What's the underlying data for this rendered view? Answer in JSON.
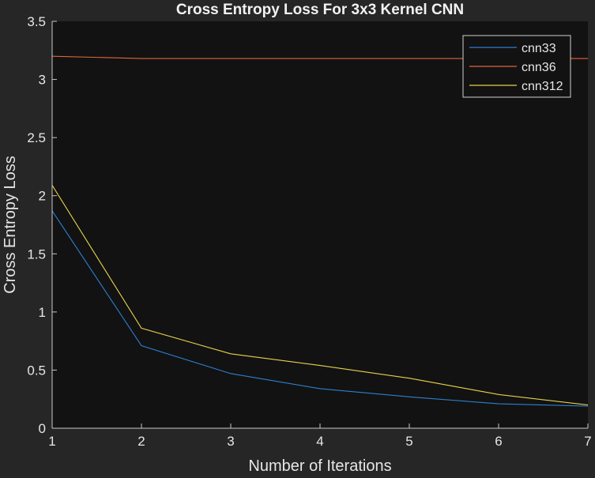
{
  "chart_data": {
    "type": "line",
    "title": "Cross Entropy Loss For 3x3 Kernel CNN",
    "xlabel": "Number of Iterations",
    "ylabel": "Cross Entropy Loss",
    "x": [
      1,
      2,
      3,
      4,
      5,
      6,
      7
    ],
    "xlim": [
      1,
      7
    ],
    "ylim": [
      0,
      3.5
    ],
    "xticks": [
      "1",
      "2",
      "3",
      "4",
      "5",
      "6",
      "7"
    ],
    "yticks": [
      "0",
      "0.5",
      "1",
      "1.5",
      "2",
      "2.5",
      "3",
      "3.5"
    ],
    "grid": false,
    "legend_position": "top-right",
    "series": [
      {
        "name": "cnn33",
        "color": "#2e7fd0",
        "values": [
          1.87,
          0.71,
          0.47,
          0.34,
          0.27,
          0.21,
          0.19
        ]
      },
      {
        "name": "cnn36",
        "color": "#e0663a",
        "values": [
          3.2,
          3.18,
          3.18,
          3.18,
          3.18,
          3.18,
          3.18
        ]
      },
      {
        "name": "cnn312",
        "color": "#e8d24a",
        "values": [
          2.09,
          0.86,
          0.64,
          0.54,
          0.43,
          0.29,
          0.2
        ]
      }
    ],
    "colors": {
      "figure_bg": "#262626",
      "axes_bg": "#121212",
      "axis": "#c8c8c8",
      "text": "#e6e6e6"
    }
  }
}
